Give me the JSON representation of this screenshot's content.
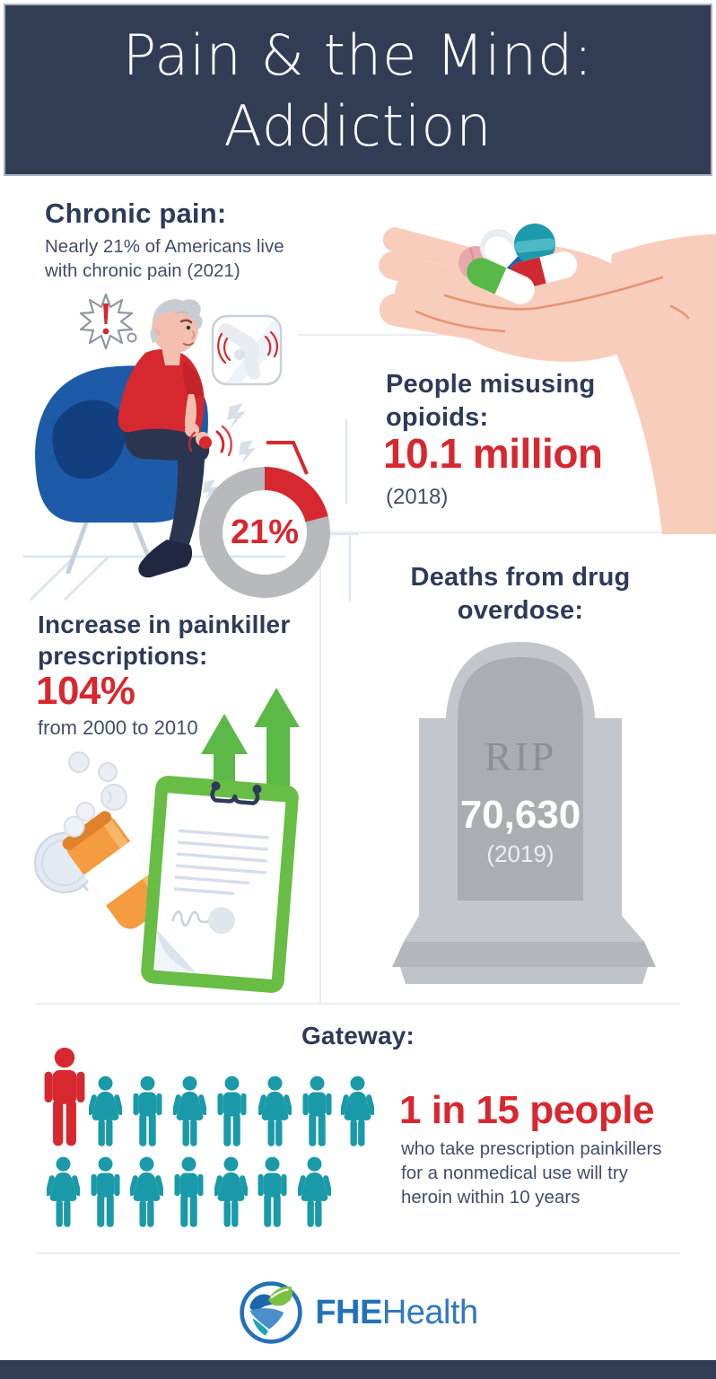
{
  "header": {
    "title_lines": [
      "Pain & the Mind:",
      "Addiction"
    ]
  },
  "sections": {
    "chronic_pain": {
      "heading": "Chronic pain:",
      "body_lines": [
        "Nearly 21% of Americans live",
        "with chronic pain (2021)"
      ]
    },
    "opioids": {
      "heading_lines": [
        "People misusing",
        "opioids:"
      ],
      "stat": "10.1 million",
      "year": "(2018)"
    },
    "overdose": {
      "heading_lines": [
        "Deaths from drug",
        "overdose:"
      ],
      "tombstone_text": "RIP",
      "stat": "70,630",
      "year": "(2019)"
    },
    "prescriptions": {
      "heading_lines": [
        "Increase in painkiller",
        "prescriptions:"
      ],
      "stat": "104%",
      "subtext": "from 2000 to 2010"
    },
    "gateway": {
      "heading": "Gateway:",
      "stat": "1 in 15 people",
      "body_lines": [
        "who take prescription painkillers",
        "for a nonmedical use will try",
        "heroin within 10 years"
      ]
    }
  },
  "footer": {
    "logo_bold": "FHE",
    "logo_regular": "Health"
  },
  "colors": {
    "navy": "#323c55",
    "text_navy": "#2e3a59",
    "red": "#d7282f",
    "teal": "#1a9aa9",
    "green": "#5cb947",
    "ring_gray": "#b7b9bd",
    "stone_gray": "#c3c6ca",
    "logo_blue": "#2272b9"
  },
  "chart_data": [
    {
      "type": "pie",
      "title": "Share of Americans living with chronic pain (2021)",
      "labels": [
        "Chronic pain",
        "No chronic pain"
      ],
      "values": [
        21,
        79
      ],
      "colors": [
        "#d7282f",
        "#b7b9bd"
      ],
      "center_label": "21%"
    },
    {
      "type": "pictogram",
      "title": "1 in 15 people who take prescription painkillers for a nonmedical use will try heroin within 10 years",
      "total": 15,
      "highlighted": 1,
      "highlight_color": "#d7282f",
      "base_color": "#1a9aa9",
      "rows": [
        [
          "highlight-male",
          "female",
          "male",
          "female",
          "male",
          "female",
          "male",
          "female"
        ],
        [
          "female",
          "male",
          "female",
          "male",
          "female",
          "male",
          "female"
        ]
      ]
    }
  ]
}
